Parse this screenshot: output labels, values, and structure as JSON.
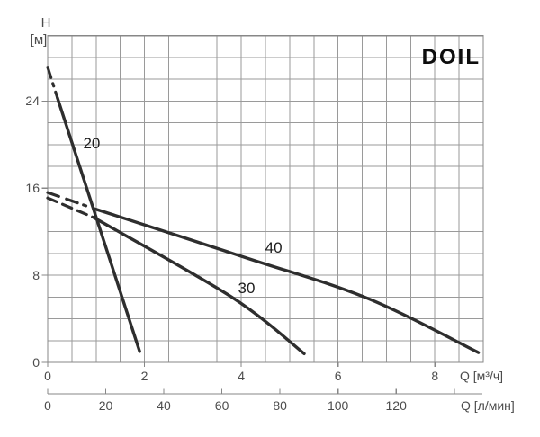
{
  "brand": "DOIL",
  "y_axis": {
    "name": "H",
    "unit": "[м]",
    "ticks": [
      {
        "label": "24",
        "h": 24
      },
      {
        "label": "16",
        "h": 16
      },
      {
        "label": "8",
        "h": 8
      },
      {
        "label": "0",
        "h": 0
      }
    ]
  },
  "x_axis_primary": {
    "label": "Q [м³/ч]",
    "ticks": [
      {
        "label": "0",
        "q": 0
      },
      {
        "label": "2",
        "q": 2
      },
      {
        "label": "4",
        "q": 4
      },
      {
        "label": "6",
        "q": 6
      },
      {
        "label": "8",
        "q": 8
      }
    ]
  },
  "x_axis_secondary": {
    "label": "Q [л/мин]",
    "ticks": [
      {
        "label": "0",
        "v": 0
      },
      {
        "label": "20",
        "v": 20
      },
      {
        "label": "40",
        "v": 40
      },
      {
        "label": "60",
        "v": 60
      },
      {
        "label": "80",
        "v": 80
      },
      {
        "label": "100",
        "v": 100
      },
      {
        "label": "120",
        "v": 120
      }
    ],
    "unlabeled_tick": 140
  },
  "chart_data": {
    "type": "line",
    "title": "DOIL",
    "xlabel": "Q [м³/ч]",
    "xlabel_secondary": "Q [л/мин]",
    "ylabel": "H [м]",
    "xlim": [
      0,
      9
    ],
    "ylim": [
      0,
      30
    ],
    "grid": {
      "x_step": 0.5,
      "y_step": 2,
      "visible": true
    },
    "legend_position": "inline-curve-labels",
    "series": [
      {
        "name": "20",
        "dash_style": "dash-dot",
        "dashed_until_q": 0.2,
        "points": [
          [
            0,
            27.1
          ],
          [
            0.2,
            24.3
          ],
          [
            1.9,
            1.0
          ]
        ],
        "label_at": [
          0.91,
          20.1
        ]
      },
      {
        "name": "30",
        "dash_style": "dash",
        "dashed_until_q": 0.95,
        "points": [
          [
            0,
            15.1
          ],
          [
            0.95,
            13.3
          ],
          [
            3.8,
            6.0
          ],
          [
            5.3,
            0.8
          ]
        ],
        "label_at": [
          4.11,
          6.8
        ]
      },
      {
        "name": "40",
        "dash_style": "dash-dash-dot",
        "dashed_until_q": 0.97,
        "points": [
          [
            0,
            15.6
          ],
          [
            0.97,
            14.1
          ],
          [
            4.1,
            9.6
          ],
          [
            6.6,
            5.9
          ],
          [
            8.9,
            0.9
          ]
        ],
        "label_at": [
          4.67,
          10.5
        ]
      }
    ]
  },
  "colors": {
    "curve": "#2e2e2e",
    "grid": "#9a9a9a",
    "border": "#878787",
    "tick_text": "#4c4c4c",
    "curve_label_text": "#1d1d1d",
    "brand_text": "#0d0d0d",
    "background": "#ffffff"
  }
}
